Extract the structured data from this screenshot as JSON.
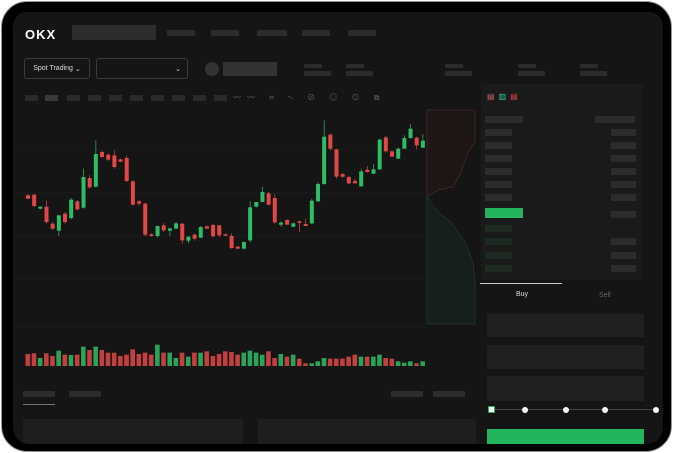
{
  "brand": {
    "logo": "OKX"
  },
  "toolbar": {
    "market_type": "Spot Trading",
    "pair_select": ""
  },
  "colors": {
    "up": "#2ebd64",
    "down": "#e04848",
    "background": "#151515",
    "accent": "#22b55e"
  },
  "trade_panel": {
    "tabs": [
      {
        "label": "Buy",
        "active": true
      },
      {
        "label": "Sell",
        "active": false
      }
    ],
    "leverage_steps": 5,
    "selected_step": 0
  },
  "chart_data": {
    "type": "candlestick",
    "ohlc": [
      [
        50,
        50.5,
        48.8,
        49
      ],
      [
        50.2,
        50.5,
        46.5,
        46.8
      ],
      [
        46,
        46.6,
        45.8,
        46.6
      ],
      [
        46.6,
        48.5,
        41.5,
        42
      ],
      [
        41.5,
        42,
        39.6,
        40
      ],
      [
        39.4,
        44.2,
        37.8,
        44
      ],
      [
        44.5,
        45,
        41.5,
        42
      ],
      [
        43.2,
        49.2,
        42.8,
        48.7
      ],
      [
        48.2,
        48.6,
        45.5,
        45.8
      ],
      [
        46.3,
        58,
        46,
        55.5
      ],
      [
        55.2,
        56,
        52,
        52.4
      ],
      [
        52.6,
        66.5,
        52.4,
        62.4
      ],
      [
        63,
        63.4,
        61.3,
        61.5
      ],
      [
        62.2,
        62.6,
        60.4,
        60.7
      ],
      [
        62,
        63.5,
        58,
        58.5
      ],
      [
        60.8,
        61,
        60,
        60.1
      ],
      [
        61.2,
        62,
        54,
        54.3
      ],
      [
        54.2,
        54.5,
        47,
        47.2
      ],
      [
        48.2,
        48.6,
        47,
        47.5
      ],
      [
        47.5,
        47.8,
        37.7,
        38.2
      ],
      [
        38.3,
        38.6,
        37.6,
        37.8
      ],
      [
        37.8,
        41,
        37.4,
        40.8
      ],
      [
        41,
        41.6,
        39,
        39.5
      ],
      [
        39.4,
        40.1,
        37.8,
        40.1
      ],
      [
        40,
        42,
        40,
        41.6
      ],
      [
        41.5,
        41.7,
        35.5,
        36.5
      ],
      [
        36.4,
        37.8,
        35.6,
        37.6
      ],
      [
        38.2,
        38.6,
        36.4,
        37
      ],
      [
        37.3,
        40.8,
        37.2,
        40.5
      ],
      [
        40.7,
        41,
        40,
        40
      ],
      [
        41.1,
        41.4,
        37.5,
        37.7
      ],
      [
        41,
        41.2,
        37.5,
        38
      ],
      [
        38.3,
        38.5,
        37.9,
        38
      ],
      [
        37.8,
        38.6,
        34,
        34.2
      ],
      [
        34.6,
        34.8,
        33.9,
        34
      ],
      [
        34,
        36.2,
        33.8,
        36
      ],
      [
        36.5,
        48.2,
        36,
        46.4
      ],
      [
        46.6,
        48,
        46.4,
        48
      ],
      [
        48,
        52.5,
        48,
        51
      ],
      [
        50.6,
        51,
        47,
        47.2
      ],
      [
        49.2,
        50.5,
        41.5,
        41.9
      ],
      [
        41.2,
        42.2,
        40.6,
        41.8
      ],
      [
        42.6,
        42.8,
        41.2,
        41.2
      ],
      [
        40.6,
        41.8,
        40.4,
        41.6
      ],
      [
        42.2,
        42.4,
        39,
        41.8
      ],
      [
        41.4,
        43,
        40.8,
        40.8
      ],
      [
        41.6,
        49,
        41.4,
        48.4
      ],
      [
        48.2,
        54,
        48,
        53.4
      ],
      [
        53.4,
        72.5,
        53.2,
        67.6
      ],
      [
        68.2,
        68.6,
        63.5,
        64
      ],
      [
        63.8,
        64,
        55,
        55.6
      ],
      [
        56.4,
        56.8,
        55.2,
        55.6
      ],
      [
        55.5,
        55.8,
        53.4,
        53.6
      ],
      [
        54.3,
        55,
        53.5,
        53.6
      ],
      [
        52.7,
        58,
        52.6,
        57.2
      ],
      [
        57.7,
        58.8,
        56.8,
        57
      ],
      [
        56.5,
        59.4,
        56.4,
        57.8
      ],
      [
        57.8,
        67,
        57.6,
        66.7
      ],
      [
        67.4,
        67.8,
        62.8,
        63.2
      ],
      [
        63.2,
        63.5,
        61.6,
        61.6
      ],
      [
        61,
        64.4,
        61,
        64
      ],
      [
        64,
        68,
        64,
        67.2
      ],
      [
        67.2,
        71.3,
        67,
        70
      ],
      [
        67.3,
        67.6,
        63.8,
        65
      ],
      [
        64.3,
        68.4,
        64.2,
        66.4
      ]
    ],
    "volume": [
      36,
      38,
      24,
      38,
      30,
      46,
      34,
      33,
      34,
      58,
      48,
      58,
      48,
      40,
      40,
      30,
      34,
      50,
      36,
      40,
      34,
      64,
      40,
      40,
      24,
      40,
      28,
      40,
      40,
      44,
      30,
      36,
      44,
      42,
      34,
      40,
      46,
      40,
      34,
      44,
      24,
      36,
      28,
      34,
      22,
      8,
      8,
      14,
      24,
      22,
      22,
      22,
      28,
      34,
      28,
      28,
      28,
      34,
      24,
      22,
      14,
      10,
      14,
      8,
      14
    ]
  }
}
